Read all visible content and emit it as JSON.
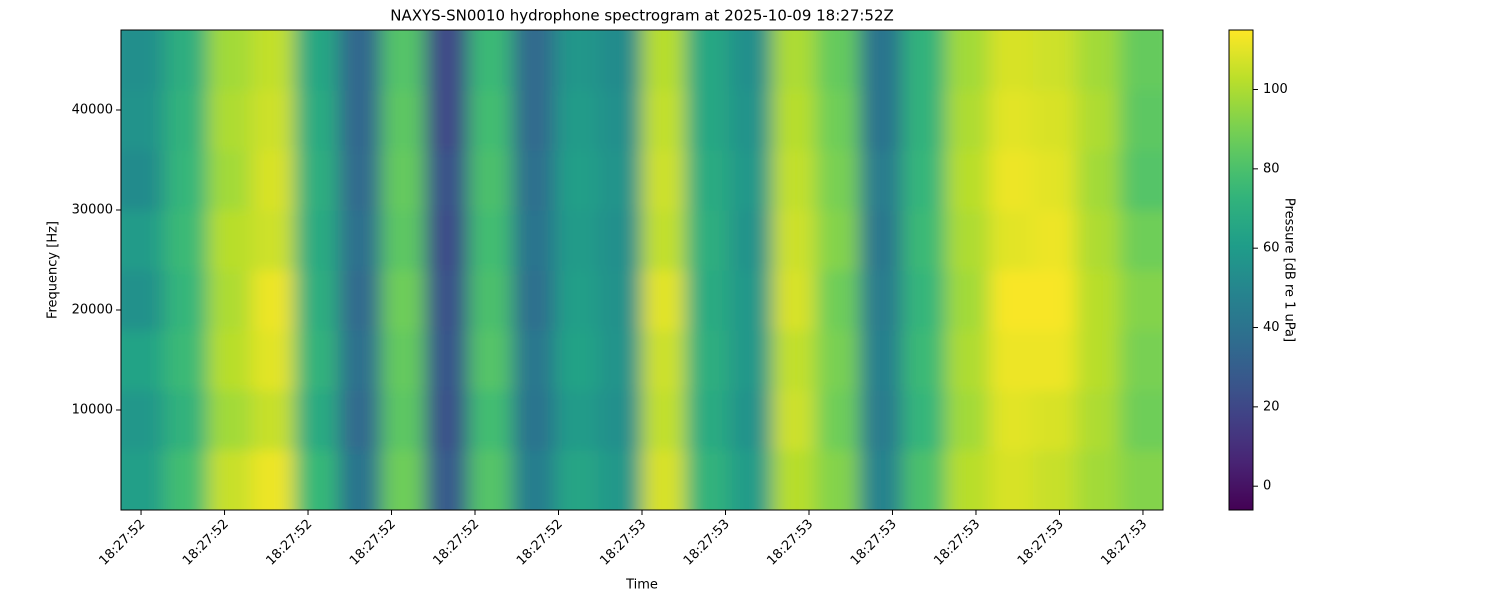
{
  "chart_data": {
    "type": "heatmap",
    "title": "NAXYS-SN0010 hydrophone spectrogram at 2025-10-09 18:27:52Z",
    "x_label": "Time",
    "y_label": "Frequency [Hz]",
    "colorbar_label": "Pressure [dB re 1 uPa]",
    "colormap": "viridis",
    "x_edges": [
      52.376,
      52.428,
      52.48,
      52.532,
      52.584,
      52.636,
      52.688,
      52.74,
      52.792,
      52.844,
      52.896,
      52.948,
      53.0,
      53.052,
      53.104,
      53.156,
      53.208,
      53.26,
      53.312,
      53.364,
      53.416,
      53.468,
      53.52,
      53.572,
      53.624
    ],
    "y_edges": [
      0,
      6000,
      12000,
      18000,
      24000,
      30000,
      36000,
      42000,
      48000
    ],
    "values": [
      [
        62,
        78,
        105,
        112,
        75,
        40,
        88,
        28,
        82,
        45,
        65,
        58,
        108,
        72,
        60,
        102,
        92,
        48,
        80,
        102,
        108,
        105,
        98,
        92
      ],
      [
        58,
        72,
        98,
        105,
        68,
        36,
        84,
        24,
        78,
        40,
        60,
        54,
        104,
        68,
        56,
        106,
        88,
        44,
        74,
        98,
        110,
        108,
        100,
        88
      ],
      [
        64,
        76,
        102,
        110,
        72,
        38,
        86,
        26,
        82,
        42,
        64,
        56,
        106,
        70,
        58,
        104,
        90,
        46,
        76,
        100,
        112,
        112,
        102,
        90
      ],
      [
        55,
        74,
        100,
        112,
        70,
        36,
        88,
        24,
        80,
        38,
        62,
        55,
        110,
        68,
        58,
        108,
        88,
        44,
        74,
        98,
        114,
        114,
        102,
        92
      ],
      [
        60,
        76,
        102,
        106,
        68,
        38,
        84,
        22,
        78,
        40,
        60,
        54,
        104,
        70,
        56,
        106,
        92,
        42,
        76,
        100,
        110,
        112,
        100,
        88
      ],
      [
        52,
        74,
        98,
        108,
        70,
        36,
        86,
        24,
        80,
        38,
        62,
        56,
        106,
        68,
        58,
        104,
        90,
        44,
        74,
        102,
        112,
        110,
        98,
        82
      ],
      [
        56,
        72,
        100,
        106,
        68,
        34,
        84,
        20,
        78,
        36,
        60,
        54,
        104,
        66,
        56,
        102,
        88,
        40,
        72,
        100,
        110,
        108,
        100,
        84
      ],
      [
        54,
        70,
        98,
        104,
        66,
        34,
        82,
        20,
        76,
        36,
        58,
        52,
        102,
        66,
        54,
        100,
        86,
        40,
        72,
        98,
        108,
        106,
        98,
        86
      ]
    ],
    "xlim": [
      52.376,
      53.624
    ],
    "ylim": [
      0,
      48000
    ],
    "clim": [
      -6,
      115
    ],
    "xticks": [
      {
        "value": 52.4,
        "label": "18:27:52"
      },
      {
        "value": 52.5,
        "label": "18:27:52"
      },
      {
        "value": 52.6,
        "label": "18:27:52"
      },
      {
        "value": 52.7,
        "label": "18:27:52"
      },
      {
        "value": 52.8,
        "label": "18:27:52"
      },
      {
        "value": 52.9,
        "label": "18:27:52"
      },
      {
        "value": 53.0,
        "label": "18:27:53"
      },
      {
        "value": 53.1,
        "label": "18:27:53"
      },
      {
        "value": 53.2,
        "label": "18:27:53"
      },
      {
        "value": 53.3,
        "label": "18:27:53"
      },
      {
        "value": 53.4,
        "label": "18:27:53"
      },
      {
        "value": 53.5,
        "label": "18:27:53"
      },
      {
        "value": 53.6,
        "label": "18:27:53"
      }
    ],
    "yticks": [
      10000,
      20000,
      30000,
      40000
    ],
    "cticks": [
      0,
      20,
      40,
      60,
      80,
      100
    ]
  }
}
